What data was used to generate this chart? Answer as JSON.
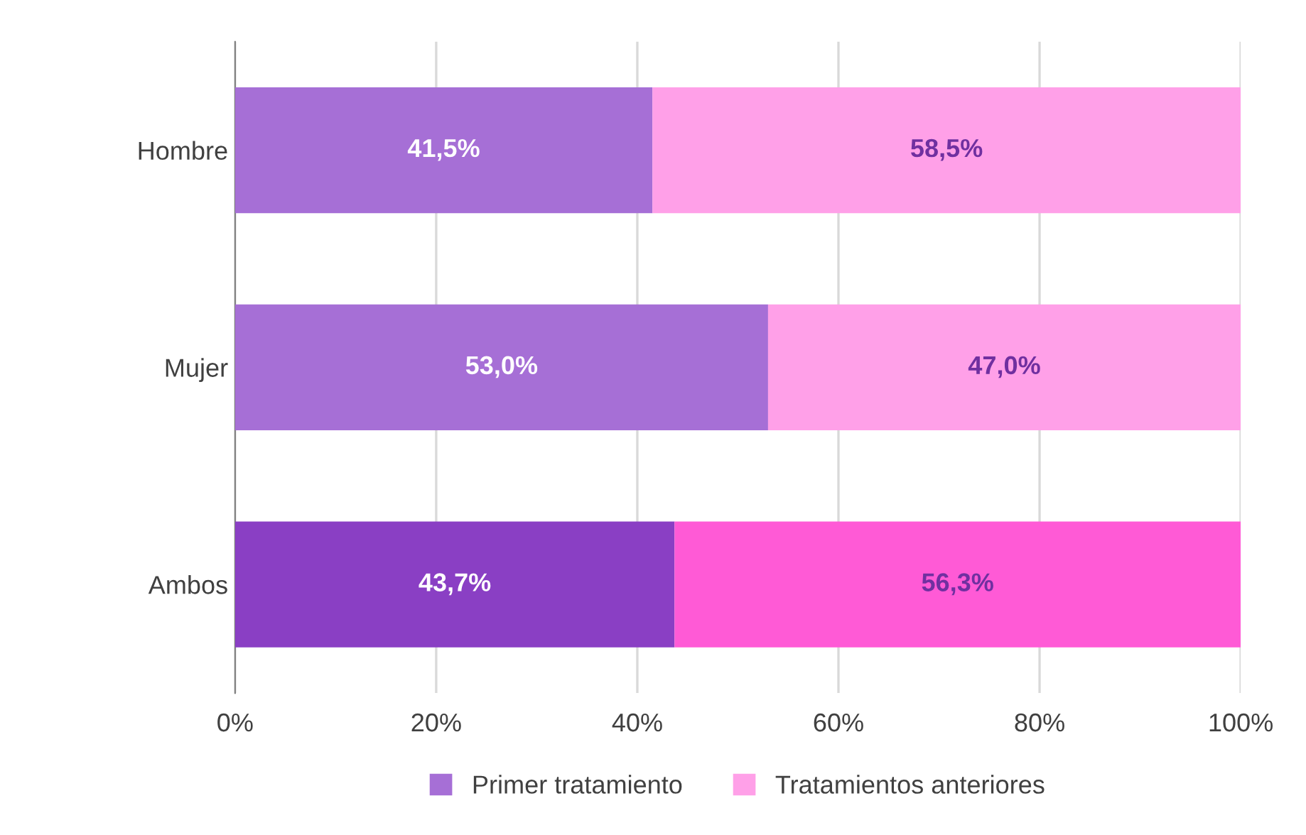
{
  "chart_data": {
    "type": "bar",
    "orientation": "horizontal",
    "stacked": true,
    "categories": [
      "Hombre",
      "Mujer",
      "Ambos"
    ],
    "series": [
      {
        "name": "Primer tratamiento",
        "color": "#a66fd6",
        "colors": [
          "#a66fd6",
          "#a66fd6",
          "#8a3fc4"
        ],
        "values": [
          41.5,
          53.0,
          43.7
        ],
        "value_labels": [
          "41,5%",
          "53,0%",
          "43,7%"
        ]
      },
      {
        "name": "Tratamientos anteriores",
        "color": "#ffa0e8",
        "colors": [
          "#ffa0e8",
          "#ffa0e8",
          "#ff5ad6"
        ],
        "values": [
          58.5,
          47.0,
          56.3
        ],
        "value_labels": [
          "58,5%",
          "47,0%",
          "56,3%"
        ]
      }
    ],
    "xlim": [
      0,
      100
    ],
    "xticks": [
      {
        "value": 0,
        "label": "0%"
      },
      {
        "value": 20,
        "label": "20%"
      },
      {
        "value": 40,
        "label": "40%"
      },
      {
        "value": 60,
        "label": "60%"
      },
      {
        "value": 80,
        "label": "80%"
      },
      {
        "value": 100,
        "label": "100%"
      }
    ],
    "grid": "x",
    "legend": "bottom"
  }
}
